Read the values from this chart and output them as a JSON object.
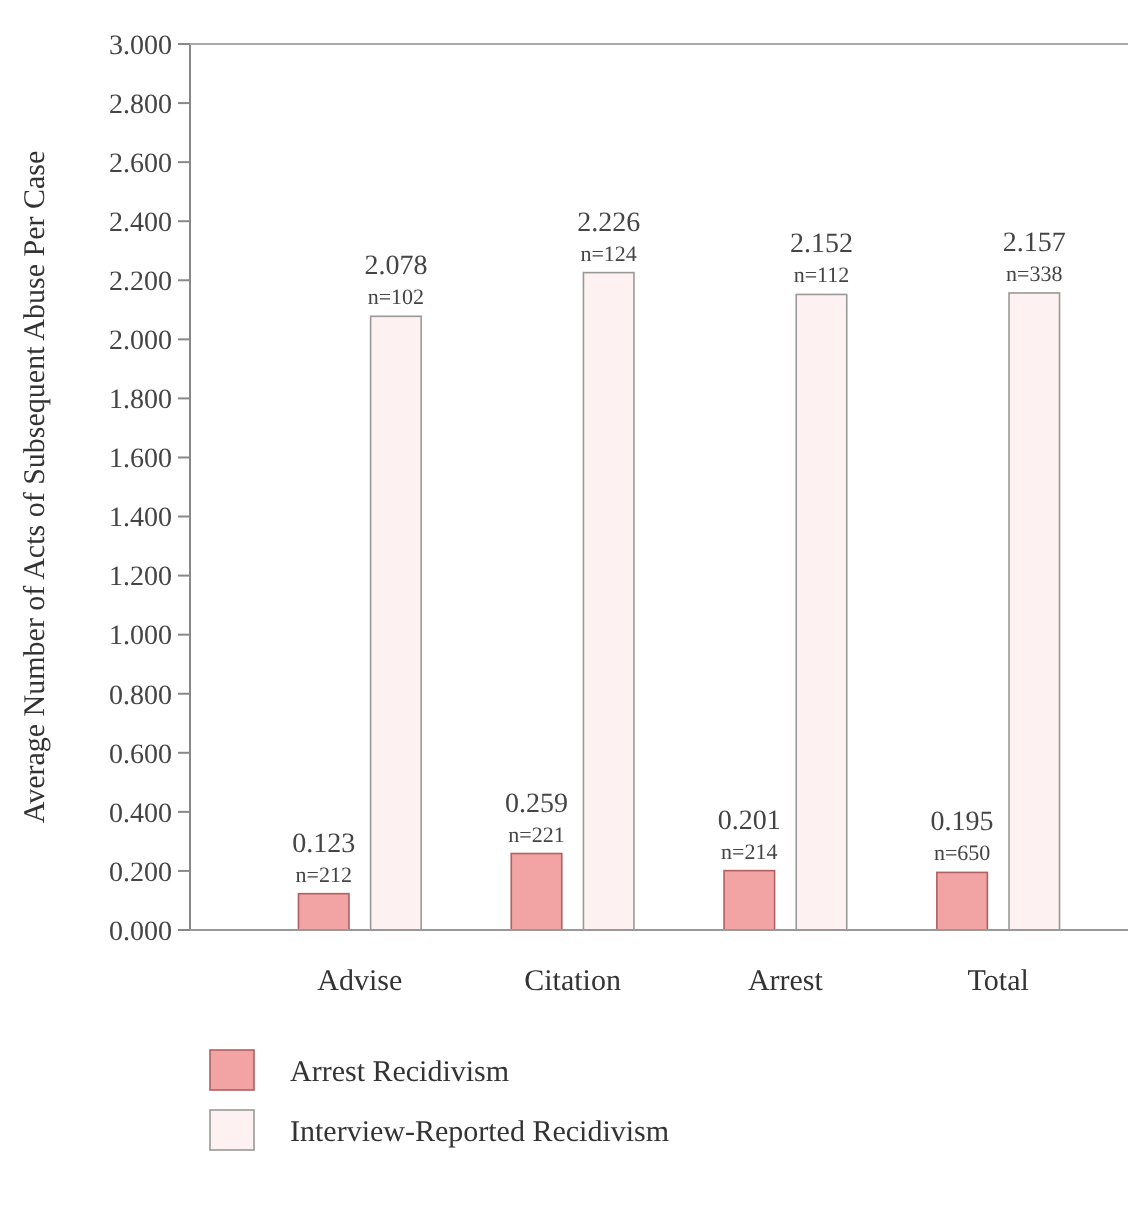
{
  "chart_data": {
    "type": "bar",
    "ylabel": "Average Number of Acts of Subsequent Abuse Per Case",
    "categories": [
      "Advise",
      "Citation",
      "Arrest",
      "Total"
    ],
    "series": [
      {
        "name": "Arrest Recidivism",
        "color": "#f2a3a3",
        "values": [
          0.123,
          0.259,
          0.201,
          0.195
        ],
        "value_labels": [
          "0.123\nn=212",
          "0.259\nn=221",
          "0.201\nn=214",
          "0.195\nn=650"
        ]
      },
      {
        "name": "Interview-Reported Recidivism",
        "color": "#fdf1f1",
        "values": [
          2.078,
          2.226,
          2.152,
          2.157
        ],
        "value_labels": [
          "2.078\nn=102",
          "2.226\nn=124",
          "2.152\nn=112",
          "2.157\nn=338"
        ]
      }
    ],
    "ylim": [
      0,
      3
    ],
    "yticks": [
      {
        "value": 0,
        "label": "0.000"
      },
      {
        "value": 0.2,
        "label": "0.200"
      },
      {
        "value": 0.4,
        "label": "0.400"
      },
      {
        "value": 0.6,
        "label": "0.600"
      },
      {
        "value": 0.8,
        "label": "0.800"
      },
      {
        "value": 1,
        "label": "1.000"
      },
      {
        "value": 1.2,
        "label": "1.200"
      },
      {
        "value": 1.4,
        "label": "1.400"
      },
      {
        "value": 1.6,
        "label": "1.600"
      },
      {
        "value": 1.8,
        "label": "1.800"
      },
      {
        "value": 2,
        "label": "2.000"
      },
      {
        "value": 2.2,
        "label": "2.200"
      },
      {
        "value": 2.4,
        "label": "2.400"
      },
      {
        "value": 2.6,
        "label": "2.600"
      },
      {
        "value": 2.8,
        "label": "2.800"
      },
      {
        "value": 3,
        "label": "3.000"
      }
    ],
    "legend": "bottom left"
  }
}
